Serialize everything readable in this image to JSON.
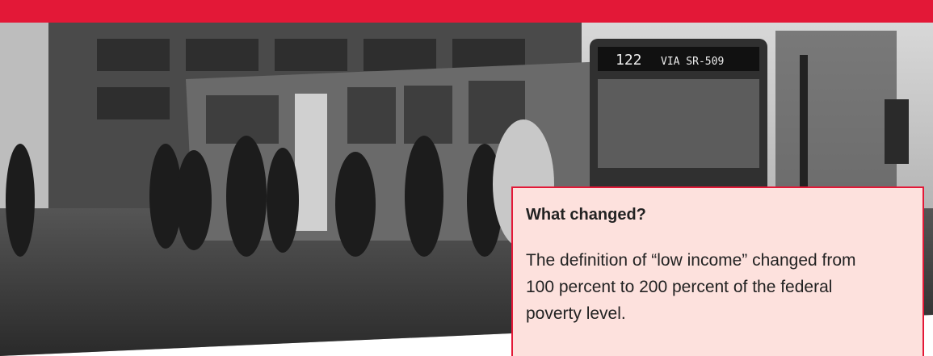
{
  "photo": {
    "bus_route": "122",
    "bus_destination": "VIA SR-509"
  },
  "callout": {
    "title": "What changed?",
    "body": "The definition of “low income” changed from 100 percent to 200 percent of the federal poverty level."
  }
}
